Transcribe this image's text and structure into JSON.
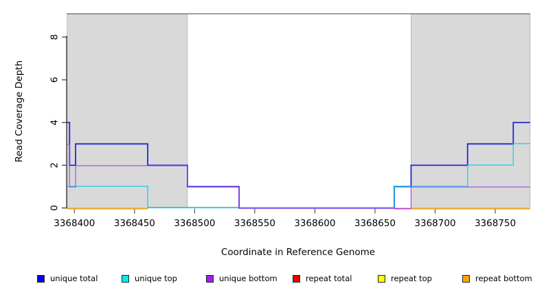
{
  "chart_data": {
    "type": "line",
    "subtype": "step-coverage",
    "title": "",
    "xlabel": "Coordinate in Reference Genome",
    "ylabel": "Read Coverage Depth",
    "xlim": [
      3368393,
      3368779
    ],
    "ylim": [
      0,
      9.1
    ],
    "x_ticks": [
      3368400,
      3368450,
      3368500,
      3368550,
      3368600,
      3368650,
      3368700,
      3368750
    ],
    "x_tick_labels": [
      "3368400",
      "3368450",
      "3368500",
      "3368550",
      "3368600",
      "3368650",
      "3368700",
      "3368750"
    ],
    "y_ticks": [
      0,
      2,
      4,
      6,
      8
    ],
    "y_tick_labels": [
      "0",
      "2",
      "4",
      "6",
      "8"
    ],
    "grid": false,
    "shade_color": "#d9d9d9",
    "shade_border_color": "#b0b0b0",
    "top_border_color": "#808080",
    "shaded_regions": [
      {
        "from": 3368394,
        "to": 3368494
      },
      {
        "from": 3368680,
        "to": 3368779
      }
    ],
    "x_end": 3368779,
    "series": [
      {
        "name": "unique total",
        "color": "#2222DC",
        "breakpoints": [
          [
            3368394,
            4
          ],
          [
            3368396,
            2
          ],
          [
            3368401,
            3
          ],
          [
            3368461,
            2
          ],
          [
            3368494,
            1
          ],
          [
            3368537,
            0
          ],
          [
            3368666,
            1
          ],
          [
            3368680,
            2
          ],
          [
            3368727,
            3
          ],
          [
            3368765,
            4
          ]
        ]
      },
      {
        "name": "unique top",
        "color": "#00D0E6",
        "breakpoints": [
          [
            3368394,
            1
          ],
          [
            3368461,
            0
          ],
          [
            3368666,
            1
          ],
          [
            3368727,
            2
          ],
          [
            3368765,
            3
          ]
        ]
      },
      {
        "name": "unique bottom",
        "color": "#A23FEE",
        "breakpoints": [
          [
            3368394,
            3
          ],
          [
            3368396,
            1
          ],
          [
            3368401,
            2
          ],
          [
            3368494,
            1
          ],
          [
            3368537,
            0
          ],
          [
            3368680,
            1
          ]
        ]
      },
      {
        "name": "repeat total",
        "color": "#EE0000",
        "breakpoints": [
          [
            3368394,
            0
          ]
        ]
      },
      {
        "name": "repeat top",
        "color": "#FFFF00",
        "breakpoints": [
          [
            3368394,
            0
          ]
        ]
      },
      {
        "name": "repeat bottom",
        "color": "#FFA500",
        "breakpoints": [
          [
            3368394,
            0
          ]
        ]
      }
    ],
    "baseline_segments": [
      {
        "from": 3368394,
        "to": 3368461,
        "color": "#FFA500"
      },
      {
        "from": 3368461,
        "to": 3368537,
        "color": "#74C77B"
      },
      {
        "from": 3368666,
        "to": 3368680,
        "color": "#E8506E"
      },
      {
        "from": 3368680,
        "to": 3368779,
        "color": "#FFA500"
      }
    ]
  },
  "legend": {
    "items": [
      {
        "label": "unique total",
        "color": "#0000EE"
      },
      {
        "label": "unique top",
        "color": "#00EEEE"
      },
      {
        "label": "unique bottom",
        "color": "#A020F0"
      },
      {
        "label": "repeat total",
        "color": "#EE0000"
      },
      {
        "label": "repeat top",
        "color": "#FFFF00"
      },
      {
        "label": "repeat bottom",
        "color": "#FFA500"
      }
    ]
  }
}
